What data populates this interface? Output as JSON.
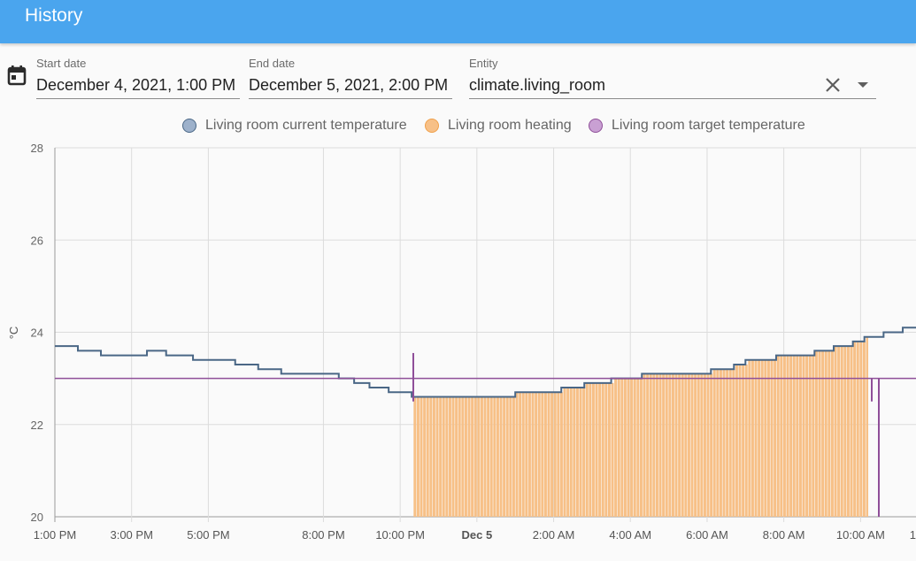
{
  "header": {
    "title": "History"
  },
  "filters": {
    "start_date": {
      "label": "Start date",
      "value": "December 4, 2021, 1:00 PM"
    },
    "end_date": {
      "label": "End date",
      "value": "December 5, 2021, 2:00 PM"
    },
    "entity": {
      "label": "Entity",
      "value": "climate.living_room"
    }
  },
  "icons": {
    "calendar": "calendar-icon",
    "clear": "close-icon",
    "dropdown": "chevron-down-icon"
  },
  "legend": [
    {
      "label": "Living room current temperature",
      "color": "#9db1cb",
      "border": "#4a6786"
    },
    {
      "label": "Living room heating",
      "color": "#f7c087",
      "border": "#f0a04a"
    },
    {
      "label": "Living room target temperature",
      "color": "#c9a0d3",
      "border": "#8f4f99"
    }
  ],
  "chart_data": {
    "type": "line",
    "title": "",
    "xlabel": "",
    "ylabel": "°C",
    "ylim": [
      20,
      28
    ],
    "xlim_hours": [
      13,
      36
    ],
    "yticks": [
      20,
      22,
      24,
      26,
      28
    ],
    "xticks": [
      {
        "h": 13,
        "label": "1:00 PM",
        "bold": false
      },
      {
        "h": 15,
        "label": "3:00 PM",
        "bold": false
      },
      {
        "h": 17,
        "label": "5:00 PM",
        "bold": false
      },
      {
        "h": 20,
        "label": "8:00 PM",
        "bold": false
      },
      {
        "h": 22,
        "label": "10:00 PM",
        "bold": false
      },
      {
        "h": 24,
        "label": "Dec 5",
        "bold": true
      },
      {
        "h": 26,
        "label": "2:00 AM",
        "bold": false
      },
      {
        "h": 28,
        "label": "4:00 AM",
        "bold": false
      },
      {
        "h": 30,
        "label": "6:00 AM",
        "bold": false
      },
      {
        "h": 32,
        "label": "8:00 AM",
        "bold": false
      },
      {
        "h": 34,
        "label": "10:00 AM",
        "bold": false
      },
      {
        "h": 36,
        "label": "1",
        "bold": false
      }
    ],
    "series": [
      {
        "name": "Living room current temperature",
        "color": "#4a6786",
        "x": [
          13.0,
          13.6,
          14.2,
          15.4,
          15.9,
          16.6,
          17.7,
          18.3,
          18.9,
          19.5,
          20.4,
          20.8,
          21.2,
          21.7,
          22.3,
          22.6,
          23.5,
          25.0,
          26.2,
          26.8,
          27.5,
          28.3,
          29.2,
          30.1,
          30.7,
          31.0,
          31.8,
          32.8,
          33.3,
          33.8,
          34.1,
          34.6,
          35.1,
          36.0
        ],
        "values": [
          23.7,
          23.6,
          23.5,
          23.6,
          23.5,
          23.4,
          23.3,
          23.2,
          23.1,
          23.1,
          23.0,
          22.9,
          22.8,
          22.7,
          22.6,
          22.6,
          22.6,
          22.7,
          22.8,
          22.9,
          23.0,
          23.1,
          23.1,
          23.2,
          23.3,
          23.4,
          23.5,
          23.6,
          23.7,
          23.8,
          23.9,
          24.0,
          24.1,
          24.2
        ]
      },
      {
        "name": "Living room target temperature",
        "color": "#8f4f99",
        "x": [
          13.0,
          36.0
        ],
        "values": [
          23.0,
          23.0
        ]
      }
    ],
    "heating_periods": [
      {
        "name": "Living room heating",
        "start_h": 22.35,
        "end_h": 34.2,
        "color": "#f7c087"
      }
    ]
  }
}
